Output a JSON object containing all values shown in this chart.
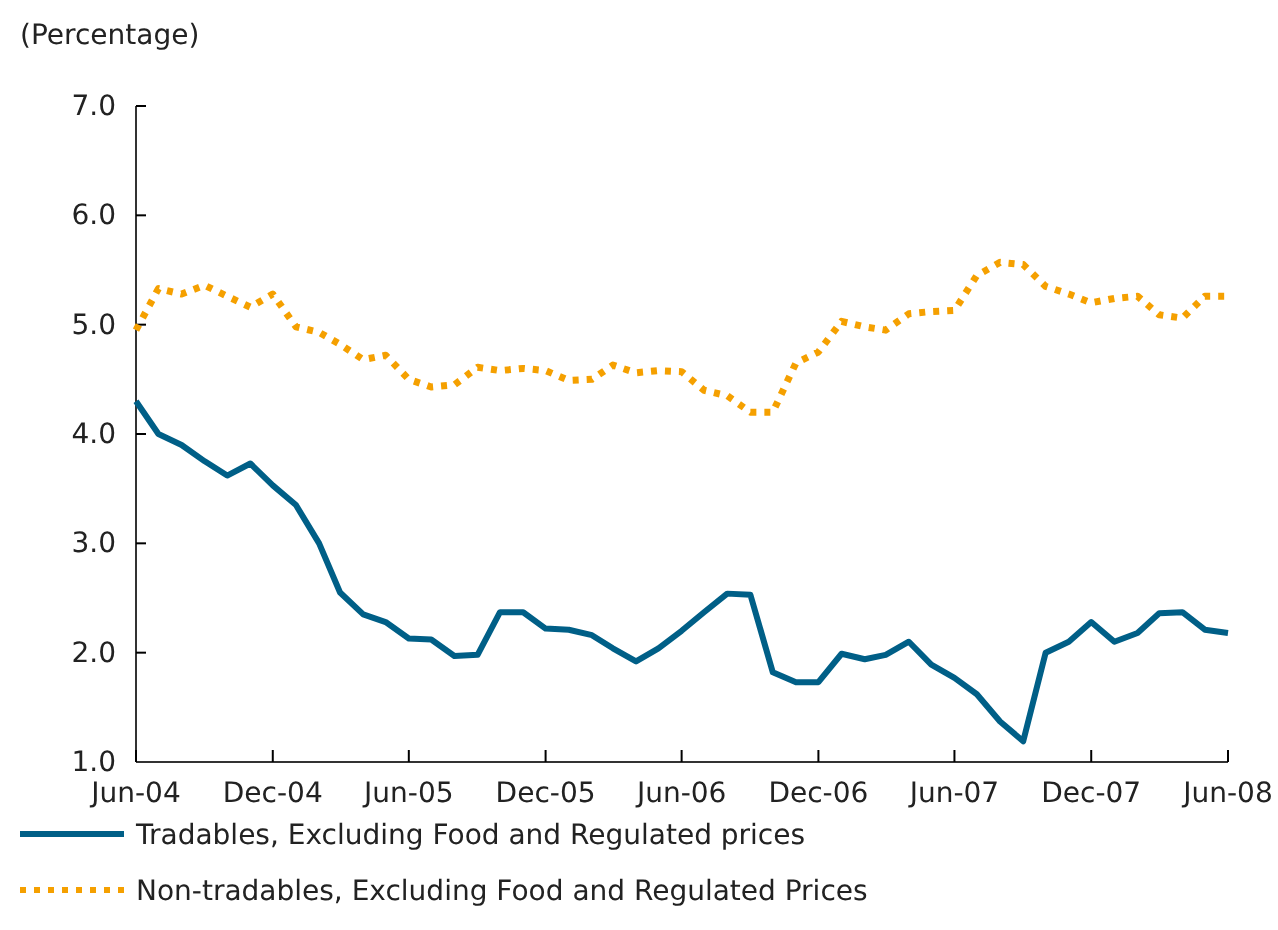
{
  "chart_data": {
    "type": "line",
    "ylabel": "(Percentage)",
    "x": [
      "2004-06",
      "2004-07",
      "2004-08",
      "2004-09",
      "2004-10",
      "2004-11",
      "2004-12",
      "2005-01",
      "2005-02",
      "2005-03",
      "2005-04",
      "2005-05",
      "2005-06",
      "2005-07",
      "2005-08",
      "2005-09",
      "2005-10",
      "2005-11",
      "2005-12",
      "2006-01",
      "2006-02",
      "2006-03",
      "2006-04",
      "2006-05",
      "2006-06",
      "2006-07",
      "2006-08",
      "2006-09",
      "2006-10",
      "2006-11",
      "2006-12",
      "2007-01",
      "2007-02",
      "2007-03",
      "2007-04",
      "2007-05",
      "2007-06",
      "2007-07",
      "2007-08",
      "2007-09",
      "2007-10",
      "2007-11",
      "2007-12",
      "2008-01",
      "2008-02",
      "2008-03",
      "2008-04",
      "2008-05",
      "2008-06"
    ],
    "series": [
      {
        "name": "Tradables, Excluding Food and Regulated prices",
        "color": "#005f87",
        "line_style": "solid",
        "values": [
          4.3,
          4.0,
          3.9,
          3.75,
          3.62,
          3.73,
          3.53,
          3.35,
          3.0,
          2.55,
          2.35,
          2.28,
          2.13,
          2.12,
          1.97,
          1.98,
          2.37,
          2.37,
          2.22,
          2.21,
          2.16,
          2.04,
          1.92,
          2.04,
          2.2,
          2.37,
          2.54,
          2.53,
          1.82,
          1.73,
          1.73,
          1.99,
          1.94,
          1.98,
          2.1,
          1.89,
          1.77,
          1.62,
          1.37,
          1.19,
          2.0,
          2.1,
          2.28,
          2.1,
          2.18,
          2.36,
          2.37,
          2.21,
          2.18
        ]
      },
      {
        "name": "Non-tradables, Excluding Food and Regulated Prices",
        "color": "#f5a000",
        "line_style": "dotted",
        "values": [
          4.95,
          5.33,
          5.28,
          5.36,
          5.26,
          5.16,
          5.28,
          4.98,
          4.93,
          4.82,
          4.68,
          4.72,
          4.5,
          4.43,
          4.45,
          4.61,
          4.58,
          4.6,
          4.58,
          4.49,
          4.5,
          4.63,
          4.56,
          4.58,
          4.57,
          4.4,
          4.35,
          4.2,
          4.2,
          4.65,
          4.75,
          5.03,
          4.98,
          4.95,
          5.1,
          5.12,
          5.13,
          5.45,
          5.57,
          5.55,
          5.35,
          5.28,
          5.2,
          5.24,
          5.26,
          5.09,
          5.06,
          5.26,
          5.26
        ]
      }
    ],
    "xlim": [
      "2004-06",
      "2008-06"
    ],
    "xticks": [
      {
        "value": "2004-06",
        "label": "Jun-04"
      },
      {
        "value": "2004-12",
        "label": "Dec-04"
      },
      {
        "value": "2005-06",
        "label": "Jun-05"
      },
      {
        "value": "2005-12",
        "label": "Dec-05"
      },
      {
        "value": "2006-06",
        "label": "Jun-06"
      },
      {
        "value": "2006-12",
        "label": "Dec-06"
      },
      {
        "value": "2007-06",
        "label": "Jun-07"
      },
      {
        "value": "2007-12",
        "label": "Dec-07"
      },
      {
        "value": "2008-06",
        "label": "Jun-08"
      }
    ],
    "ylim": [
      1,
      7
    ],
    "yticks": [
      {
        "value": 1,
        "label": "1.0"
      },
      {
        "value": 2,
        "label": "2.0"
      },
      {
        "value": 3,
        "label": "3.0"
      },
      {
        "value": 4,
        "label": "4.0"
      },
      {
        "value": 5,
        "label": "5.0"
      },
      {
        "value": 6,
        "label": "6.0"
      },
      {
        "value": 7,
        "label": "7.0"
      }
    ],
    "grid": false,
    "legend": "bottom",
    "marker": "none"
  }
}
